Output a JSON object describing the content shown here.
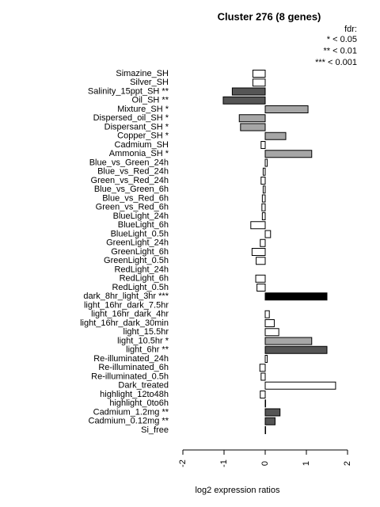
{
  "chart_data": {
    "type": "bar",
    "orientation": "horizontal",
    "title": "Cluster 276 (8 genes)",
    "legend_title": "fdr:",
    "legend_items": [
      "* < 0.05",
      "** < 0.01",
      "*** < 0.001"
    ],
    "xlabel": "log2 expression ratios",
    "categories": [
      "Simazine_SH",
      "Silver_SH",
      "Salinity_15ppt_SH **",
      "Oil_SH **",
      "Mixture_SH *",
      "Dispersed_oil_SH *",
      "Dispersant_SH *",
      "Copper_SH *",
      "Cadmium_SH",
      "Ammonia_SH *",
      "Blue_vs_Green_24h",
      "Blue_vs_Red_24h",
      "Green_vs_Red_24h",
      "Blue_vs_Green_6h",
      "Blue_vs_Red_6h",
      "Green_vs_Red_6h",
      "BlueLight_24h",
      "BlueLight_6h",
      "BlueLight_0.5h",
      "GreenLight_24h",
      "GreenLight_6h",
      "GreenLight_0.5h",
      "RedLight_24h",
      "RedLight_6h",
      "RedLight_0.5h",
      "dark_8hr_light_3hr ***",
      "light_16hr_dark_7.5hr",
      "light_16hr_dark_4hr",
      "light_16hr_dark_30min",
      "light_15.5hr",
      "light_10.5hr *",
      "light_6hr **",
      "Re-illuminated_24h",
      "Re-illuminated_6h",
      "Re-illuminated_0.5h",
      "Dark_treated",
      "highlight_12to48h",
      "highlight_0to6h",
      "Cadmium_1.2mg **",
      "Cadmium_0.12mg **",
      "Si_free"
    ],
    "values": [
      -0.3,
      -0.3,
      -0.8,
      -1.02,
      1.04,
      -0.63,
      -0.6,
      0.5,
      -0.1,
      1.13,
      0.05,
      -0.05,
      -0.1,
      -0.05,
      -0.07,
      -0.08,
      -0.07,
      -0.35,
      0.13,
      -0.12,
      -0.32,
      -0.22,
      0,
      -0.23,
      -0.2,
      1.5,
      0,
      0.1,
      0.22,
      0.33,
      1.13,
      1.5,
      0.05,
      -0.13,
      -0.1,
      1.71,
      -0.12,
      0.01,
      0.36,
      0.24,
      0.01
    ],
    "colors": [
      "#ffffff",
      "#ffffff",
      "#555555",
      "#555555",
      "#a6a6a6",
      "#a6a6a6",
      "#a6a6a6",
      "#a6a6a6",
      "#ffffff",
      "#a6a6a6",
      "#ffffff",
      "#ffffff",
      "#ffffff",
      "#ffffff",
      "#ffffff",
      "#ffffff",
      "#ffffff",
      "#ffffff",
      "#ffffff",
      "#ffffff",
      "#ffffff",
      "#ffffff",
      "#ffffff",
      "#ffffff",
      "#ffffff",
      "#000000",
      "#ffffff",
      "#ffffff",
      "#ffffff",
      "#ffffff",
      "#a6a6a6",
      "#555555",
      "#ffffff",
      "#ffffff",
      "#ffffff",
      "#ffffff",
      "#ffffff",
      "#ffffff",
      "#555555",
      "#555555",
      "#ffffff"
    ],
    "xlim": [
      -2,
      2
    ],
    "xticks": [
      -2,
      -1,
      0,
      1,
      2
    ],
    "grid": false
  }
}
